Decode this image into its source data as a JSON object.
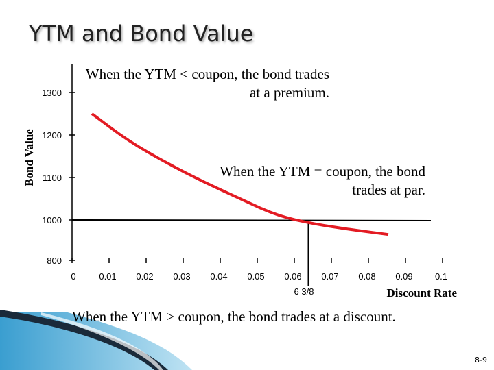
{
  "slide": {
    "title": "YTM and Bond Value",
    "page_number": "8-9"
  },
  "annotations": {
    "premium": "When the YTM < coupon, the bond trades at a premium.",
    "par": "When the YTM = coupon, the bond trades at par.",
    "discount": "When the YTM > coupon, the bond trades at a discount."
  },
  "colors": {
    "curve": "#e31b23",
    "axis": "#000000",
    "accent_dark": "#1a2a3a",
    "accent_blue": "#3a9ed0"
  },
  "chart_data": {
    "type": "line",
    "title": "",
    "xlabel": "Discount Rate",
    "ylabel": "Bond Value",
    "x_ticks": [
      "0",
      "0.01",
      "0.02",
      "0.03",
      "0.04",
      "0.05",
      "0.06",
      "0.07",
      "0.08",
      "0.09",
      "0.1"
    ],
    "y_ticks": [
      "800",
      "1000",
      "1100",
      "1200",
      "1300"
    ],
    "xlim": [
      0,
      0.1
    ],
    "y_tick_values": [
      800,
      1000,
      1100,
      1200,
      1300
    ],
    "coupon_rate_label": "6 3/8",
    "coupon_rate": 0.06375,
    "par_value": 1000,
    "series": [
      {
        "x": [
          0.01,
          0.02,
          0.03,
          0.04,
          0.05,
          0.06,
          0.07,
          0.08,
          0.09
        ],
        "y": [
          1250,
          1185,
          1135,
          1090,
          1050,
          1010,
          980,
          952,
          928
        ]
      }
    ]
  }
}
